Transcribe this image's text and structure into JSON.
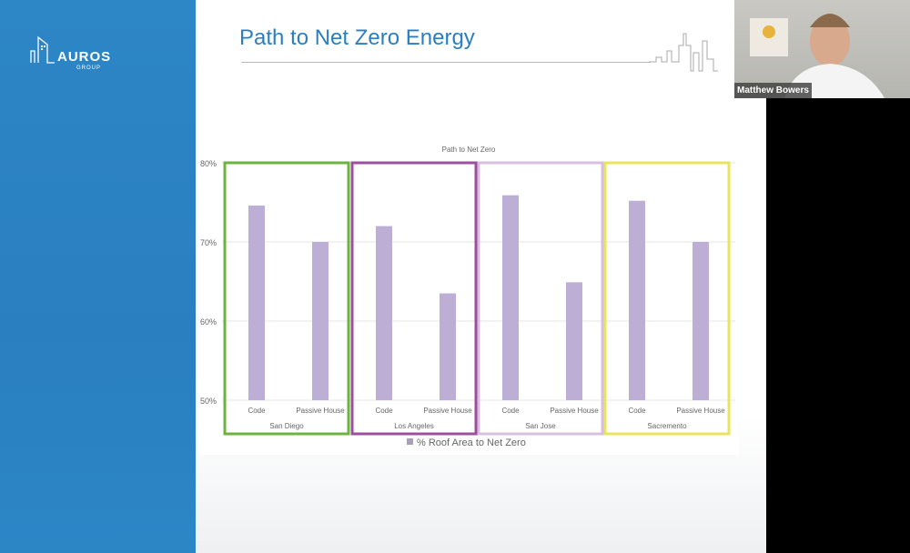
{
  "sidebar": {
    "logo_text": "AUROS",
    "logo_sub": "GROUP"
  },
  "slide": {
    "title": "Path to Net Zero Energy"
  },
  "video": {
    "participant_name": "Matthew Bowers"
  },
  "chart_data": {
    "type": "bar",
    "title": "Path to Net Zero",
    "groups": [
      "San Diego",
      "Los Angeles",
      "San Jose",
      "Sacremento"
    ],
    "categories": [
      "Code",
      "Passive House"
    ],
    "series": [
      {
        "name": "% Roof Area to Net Zero",
        "values": [
          [
            74.6,
            70
          ],
          [
            72,
            63.5
          ],
          [
            75.9,
            64.9
          ],
          [
            75.2,
            70
          ]
        ]
      }
    ],
    "ylim": [
      50,
      80
    ],
    "yticks": [
      "50%",
      "60%",
      "70%",
      "80%"
    ],
    "legend": "bottom",
    "bar_color": "#bcaed4",
    "group_box_colors": [
      "#6db33f",
      "#9b4f9e",
      "#d8bfe0",
      "#e9e45a"
    ]
  }
}
